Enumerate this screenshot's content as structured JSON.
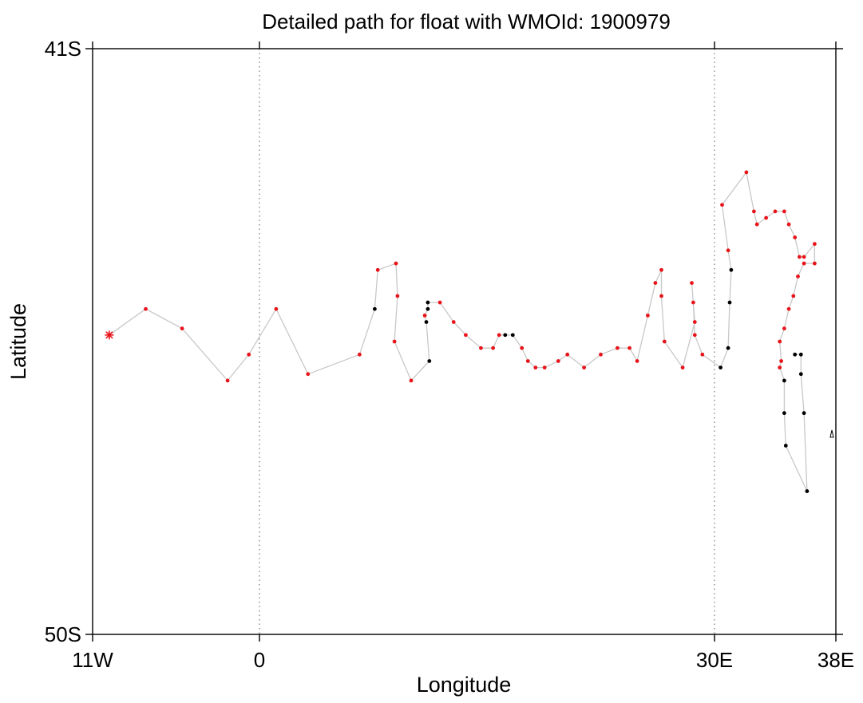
{
  "chart_data": {
    "type": "scatter",
    "title": "Detailed path for float with WMOId: 1900979",
    "xlabel": "Longitude",
    "ylabel": "Latitude",
    "xlim": [
      -11,
      38
    ],
    "ylim": [
      -50,
      -41
    ],
    "x_ticks": [
      {
        "value": -11,
        "label": "11W"
      },
      {
        "value": 0,
        "label": "0"
      },
      {
        "value": 30,
        "label": "30E"
      },
      {
        "value": 38,
        "label": "38E"
      }
    ],
    "y_ticks": [
      {
        "value": -41,
        "label": "41S"
      },
      {
        "value": -50,
        "label": "50S"
      }
    ],
    "gridlines_x": [
      0,
      30
    ],
    "start_marker": {
      "lon": -9.9,
      "lat": -45.4,
      "color": "#e8141a"
    },
    "colors": {
      "path": "#c8c8c8",
      "qc_good": "#e8141a",
      "qc_other": "#000000"
    },
    "series": [
      {
        "points": [
          {
            "lon": -9.9,
            "lat": -45.4,
            "flag": "start"
          },
          {
            "lon": -7.5,
            "lat": -45.0,
            "flag": "r"
          },
          {
            "lon": -5.1,
            "lat": -45.3,
            "flag": "r"
          },
          {
            "lon": -2.1,
            "lat": -46.1,
            "flag": "r"
          },
          {
            "lon": -0.7,
            "lat": -45.7,
            "flag": "r"
          },
          {
            "lon": 1.1,
            "lat": -45.0,
            "flag": "r"
          },
          {
            "lon": 3.2,
            "lat": -46.0,
            "flag": "r"
          },
          {
            "lon": 6.6,
            "lat": -45.7,
            "flag": "r"
          },
          {
            "lon": 7.6,
            "lat": -45.0,
            "flag": "k"
          },
          {
            "lon": 7.8,
            "lat": -44.4,
            "flag": "r"
          },
          {
            "lon": 9.0,
            "lat": -44.3,
            "flag": "r"
          },
          {
            "lon": 9.1,
            "lat": -44.8,
            "flag": "r"
          },
          {
            "lon": 8.9,
            "lat": -45.5,
            "flag": "r"
          },
          {
            "lon": 10.0,
            "lat": -46.1,
            "flag": "r"
          },
          {
            "lon": 11.2,
            "lat": -45.8,
            "flag": "k"
          },
          {
            "lon": 11.0,
            "lat": -45.2,
            "flag": "k"
          },
          {
            "lon": 10.9,
            "lat": -45.1,
            "flag": "r"
          },
          {
            "lon": 11.1,
            "lat": -45.0,
            "flag": "k"
          },
          {
            "lon": 11.1,
            "lat": -44.9,
            "flag": "k"
          },
          {
            "lon": 11.9,
            "lat": -44.9,
            "flag": "r"
          },
          {
            "lon": 12.8,
            "lat": -45.2,
            "flag": "r"
          },
          {
            "lon": 13.6,
            "lat": -45.4,
            "flag": "r"
          },
          {
            "lon": 14.6,
            "lat": -45.6,
            "flag": "r"
          },
          {
            "lon": 15.4,
            "lat": -45.6,
            "flag": "r"
          },
          {
            "lon": 15.8,
            "lat": -45.4,
            "flag": "r"
          },
          {
            "lon": 16.2,
            "lat": -45.4,
            "flag": "k"
          },
          {
            "lon": 16.7,
            "lat": -45.4,
            "flag": "k"
          },
          {
            "lon": 17.3,
            "lat": -45.6,
            "flag": "r"
          },
          {
            "lon": 17.7,
            "lat": -45.8,
            "flag": "r"
          },
          {
            "lon": 18.2,
            "lat": -45.9,
            "flag": "r"
          },
          {
            "lon": 18.8,
            "lat": -45.9,
            "flag": "r"
          },
          {
            "lon": 19.7,
            "lat": -45.8,
            "flag": "r"
          },
          {
            "lon": 20.3,
            "lat": -45.7,
            "flag": "r"
          },
          {
            "lon": 21.4,
            "lat": -45.9,
            "flag": "r"
          },
          {
            "lon": 22.5,
            "lat": -45.7,
            "flag": "r"
          },
          {
            "lon": 23.6,
            "lat": -45.6,
            "flag": "r"
          },
          {
            "lon": 24.4,
            "lat": -45.6,
            "flag": "r"
          },
          {
            "lon": 24.9,
            "lat": -45.8,
            "flag": "r"
          },
          {
            "lon": 25.6,
            "lat": -45.1,
            "flag": "r"
          },
          {
            "lon": 26.1,
            "lat": -44.6,
            "flag": "r"
          },
          {
            "lon": 26.5,
            "lat": -44.4,
            "flag": "r"
          },
          {
            "lon": 26.5,
            "lat": -44.8,
            "flag": "r"
          },
          {
            "lon": 26.7,
            "lat": -45.5,
            "flag": "r"
          },
          {
            "lon": 27.9,
            "lat": -45.9,
            "flag": "r"
          },
          {
            "lon": 28.7,
            "lat": -45.2,
            "flag": "r"
          },
          {
            "lon": 28.5,
            "lat": -44.6,
            "flag": "r"
          },
          {
            "lon": 28.6,
            "lat": -44.9,
            "flag": "r"
          },
          {
            "lon": 28.7,
            "lat": -45.4,
            "flag": "r"
          },
          {
            "lon": 29.2,
            "lat": -45.7,
            "flag": "r"
          },
          {
            "lon": 30.4,
            "lat": -45.9,
            "flag": "k"
          },
          {
            "lon": 30.9,
            "lat": -45.6,
            "flag": "k"
          },
          {
            "lon": 31.0,
            "lat": -44.9,
            "flag": "k"
          },
          {
            "lon": 31.1,
            "lat": -44.4,
            "flag": "k"
          },
          {
            "lon": 30.9,
            "lat": -44.1,
            "flag": "r"
          },
          {
            "lon": 30.5,
            "lat": -43.4,
            "flag": "r"
          },
          {
            "lon": 32.1,
            "lat": -42.9,
            "flag": "r"
          },
          {
            "lon": 32.6,
            "lat": -43.5,
            "flag": "r"
          },
          {
            "lon": 32.8,
            "lat": -43.7,
            "flag": "r"
          },
          {
            "lon": 33.4,
            "lat": -43.6,
            "flag": "r"
          },
          {
            "lon": 34.0,
            "lat": -43.5,
            "flag": "r"
          },
          {
            "lon": 34.6,
            "lat": -43.5,
            "flag": "r"
          },
          {
            "lon": 34.9,
            "lat": -43.7,
            "flag": "r"
          },
          {
            "lon": 35.3,
            "lat": -43.9,
            "flag": "r"
          },
          {
            "lon": 35.6,
            "lat": -44.2,
            "flag": "r"
          },
          {
            "lon": 35.9,
            "lat": -44.2,
            "flag": "r"
          },
          {
            "lon": 36.6,
            "lat": -44.0,
            "flag": "r"
          },
          {
            "lon": 36.6,
            "lat": -44.3,
            "flag": "r"
          },
          {
            "lon": 35.9,
            "lat": -44.3,
            "flag": "r"
          },
          {
            "lon": 35.5,
            "lat": -44.5,
            "flag": "r"
          },
          {
            "lon": 35.2,
            "lat": -44.8,
            "flag": "r"
          },
          {
            "lon": 34.9,
            "lat": -45.0,
            "flag": "r"
          },
          {
            "lon": 34.6,
            "lat": -45.3,
            "flag": "r"
          },
          {
            "lon": 34.3,
            "lat": -45.5,
            "flag": "r"
          },
          {
            "lon": 34.4,
            "lat": -45.8,
            "flag": "r"
          },
          {
            "lon": 34.3,
            "lat": -45.9,
            "flag": "r"
          },
          {
            "lon": 34.6,
            "lat": -46.1,
            "flag": "k"
          },
          {
            "lon": 34.6,
            "lat": -46.6,
            "flag": "k"
          },
          {
            "lon": 34.7,
            "lat": -47.1,
            "flag": "k"
          },
          {
            "lon": 36.1,
            "lat": -47.8,
            "flag": "k"
          },
          {
            "lon": 35.9,
            "lat": -46.6,
            "flag": "k"
          },
          {
            "lon": 35.7,
            "lat": -46.0,
            "flag": "k"
          },
          {
            "lon": 35.7,
            "lat": -45.7,
            "flag": "k"
          },
          {
            "lon": 35.3,
            "lat": -45.7,
            "flag": "k"
          }
        ]
      }
    ]
  }
}
